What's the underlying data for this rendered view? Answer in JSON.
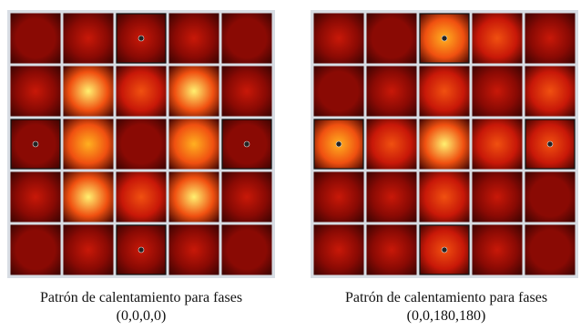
{
  "panels": [
    {
      "caption": [
        "Patrón de calentamiento para fases",
        "(0,0,0,0)"
      ]
    },
    {
      "caption": [
        "Patrón de calentamiento para fases",
        "(0,0,180,180)"
      ]
    }
  ]
}
